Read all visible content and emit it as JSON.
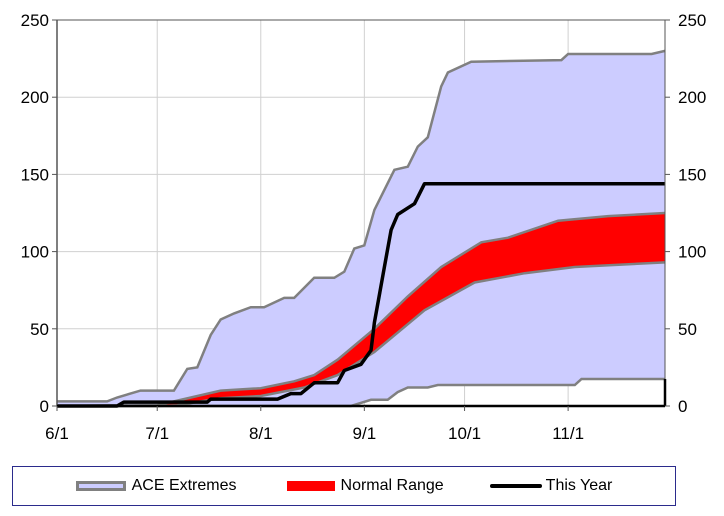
{
  "chart_data": {
    "type": "area",
    "title": "",
    "xlabel": "",
    "ylabel": "",
    "x_ticks": [
      "6/1",
      "7/1",
      "8/1",
      "9/1",
      "10/1",
      "11/1"
    ],
    "x_range": [
      "6/1",
      "11/30"
    ],
    "ylim": [
      0,
      250
    ],
    "y_ticks": [
      0,
      50,
      100,
      150,
      200,
      250
    ],
    "y_axis_both_sides": true,
    "grid": true,
    "legend_position": "bottom",
    "series": [
      {
        "name": "ACE Extremes",
        "kind": "band",
        "color": "#ccccff",
        "edge_color": "#808080",
        "upper": [
          [
            "6/1",
            3
          ],
          [
            "6/16",
            3
          ],
          [
            "6/19",
            5.5
          ],
          [
            "6/26",
            10
          ],
          [
            "7/6",
            10
          ],
          [
            "7/10",
            24
          ],
          [
            "7/13",
            25
          ],
          [
            "7/17",
            46
          ],
          [
            "7/20",
            56
          ],
          [
            "7/24",
            60
          ],
          [
            "7/29",
            64
          ],
          [
            "8/2",
            64
          ],
          [
            "8/8",
            70
          ],
          [
            "8/11",
            70
          ],
          [
            "8/17",
            83
          ],
          [
            "8/23",
            83
          ],
          [
            "8/26",
            87
          ],
          [
            "8/29",
            102
          ],
          [
            "9/1",
            104
          ],
          [
            "9/4",
            127
          ],
          [
            "9/10",
            153
          ],
          [
            "9/14",
            155
          ],
          [
            "9/17",
            168
          ],
          [
            "9/20",
            174
          ],
          [
            "9/24",
            207
          ],
          [
            "9/26",
            216
          ],
          [
            "10/3",
            223
          ],
          [
            "10/30",
            224
          ],
          [
            "11/1",
            228
          ],
          [
            "11/26",
            228
          ],
          [
            "11/30",
            230
          ]
        ],
        "lower": [
          [
            "6/1",
            0
          ],
          [
            "8/28",
            0
          ],
          [
            "9/3",
            4
          ],
          [
            "9/8",
            4
          ],
          [
            "9/11",
            9
          ],
          [
            "9/14",
            12
          ],
          [
            "9/20",
            12
          ],
          [
            "9/23",
            13.6
          ],
          [
            "11/3",
            13.6
          ],
          [
            "11/5",
            17.5
          ],
          [
            "11/30",
            17.5
          ]
        ]
      },
      {
        "name": "Normal Range",
        "kind": "band",
        "color": "#ff0000",
        "edge_color": "#808080",
        "upper": [
          [
            "6/1",
            0
          ],
          [
            "7/1",
            0.5
          ],
          [
            "7/7",
            3.5
          ],
          [
            "7/20",
            10
          ],
          [
            "8/1",
            11.5
          ],
          [
            "8/11",
            16
          ],
          [
            "8/17",
            20
          ],
          [
            "8/24",
            30
          ],
          [
            "9/4",
            50
          ],
          [
            "9/14",
            71
          ],
          [
            "9/24",
            90
          ],
          [
            "10/6",
            106
          ],
          [
            "10/14",
            109
          ],
          [
            "10/29",
            120
          ],
          [
            "11/13",
            123
          ],
          [
            "11/30",
            125
          ]
        ],
        "lower": [
          [
            "6/1",
            0
          ],
          [
            "7/1",
            0
          ],
          [
            "7/7",
            0.5
          ],
          [
            "7/20",
            5
          ],
          [
            "8/1",
            6.5
          ],
          [
            "8/14",
            12
          ],
          [
            "8/24",
            20
          ],
          [
            "9/4",
            35
          ],
          [
            "9/19",
            62
          ],
          [
            "10/4",
            80
          ],
          [
            "10/19",
            86
          ],
          [
            "11/3",
            90
          ],
          [
            "11/30",
            93
          ]
        ]
      },
      {
        "name": "This Year",
        "kind": "line",
        "color": "#000000",
        "points": [
          [
            "6/1",
            0
          ],
          [
            "6/19",
            0
          ],
          [
            "6/21",
            2.5
          ],
          [
            "7/16",
            2.5
          ],
          [
            "7/17",
            4.5
          ],
          [
            "8/6",
            4.5
          ],
          [
            "8/10",
            8
          ],
          [
            "8/13",
            8
          ],
          [
            "8/17",
            15
          ],
          [
            "8/24",
            15
          ],
          [
            "8/26",
            23
          ],
          [
            "8/31",
            27
          ],
          [
            "9/3",
            36
          ],
          [
            "9/4",
            54
          ],
          [
            "9/7",
            90
          ],
          [
            "9/9",
            114
          ],
          [
            "9/11",
            124
          ],
          [
            "9/16",
            131
          ],
          [
            "9/19",
            144
          ],
          [
            "11/30",
            144
          ]
        ]
      }
    ]
  },
  "legend": {
    "items": [
      "ACE Extremes",
      "Normal Range",
      "This Year"
    ]
  }
}
